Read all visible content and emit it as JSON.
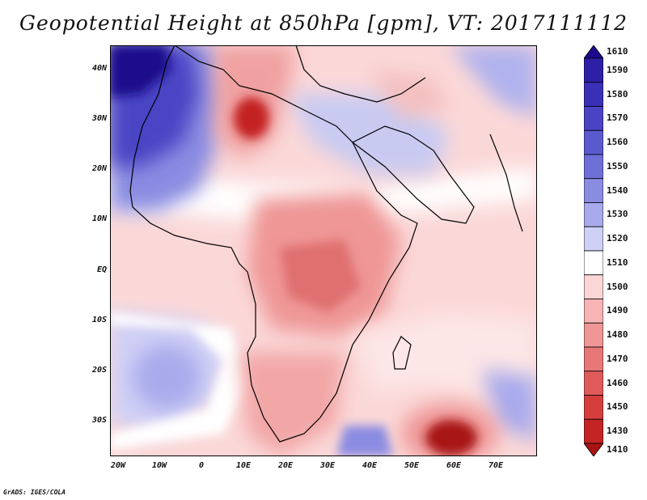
{
  "title": "Geopotential Height at 850hPa [gpm], VT: 2017111112",
  "credit": "GrADS: IGES/COLA",
  "lat_labels": [
    "40N",
    "30N",
    "20N",
    "10N",
    "EQ",
    "10S",
    "20S",
    "30S"
  ],
  "lon_labels": [
    "20W",
    "10W",
    "0",
    "10E",
    "20E",
    "30E",
    "40E",
    "50E",
    "60E",
    "70E"
  ],
  "colorbar": {
    "levels": [
      "1610",
      "1590",
      "1580",
      "1570",
      "1560",
      "1550",
      "1540",
      "1530",
      "1520",
      "1510",
      "1500",
      "1490",
      "1480",
      "1470",
      "1460",
      "1450",
      "1430",
      "1410"
    ],
    "colors": [
      "#1a0a8c",
      "#2d1fa6",
      "#3a30b8",
      "#4a44c4",
      "#5a5ace",
      "#6e70d8",
      "#8a8ce2",
      "#a9aaec",
      "#cfd0f6",
      "#ffffff",
      "#fbd6d6",
      "#f6b4b4",
      "#ef9696",
      "#e87878",
      "#e05a5a",
      "#d63e3e",
      "#c42424",
      "#a81414"
    ]
  }
}
